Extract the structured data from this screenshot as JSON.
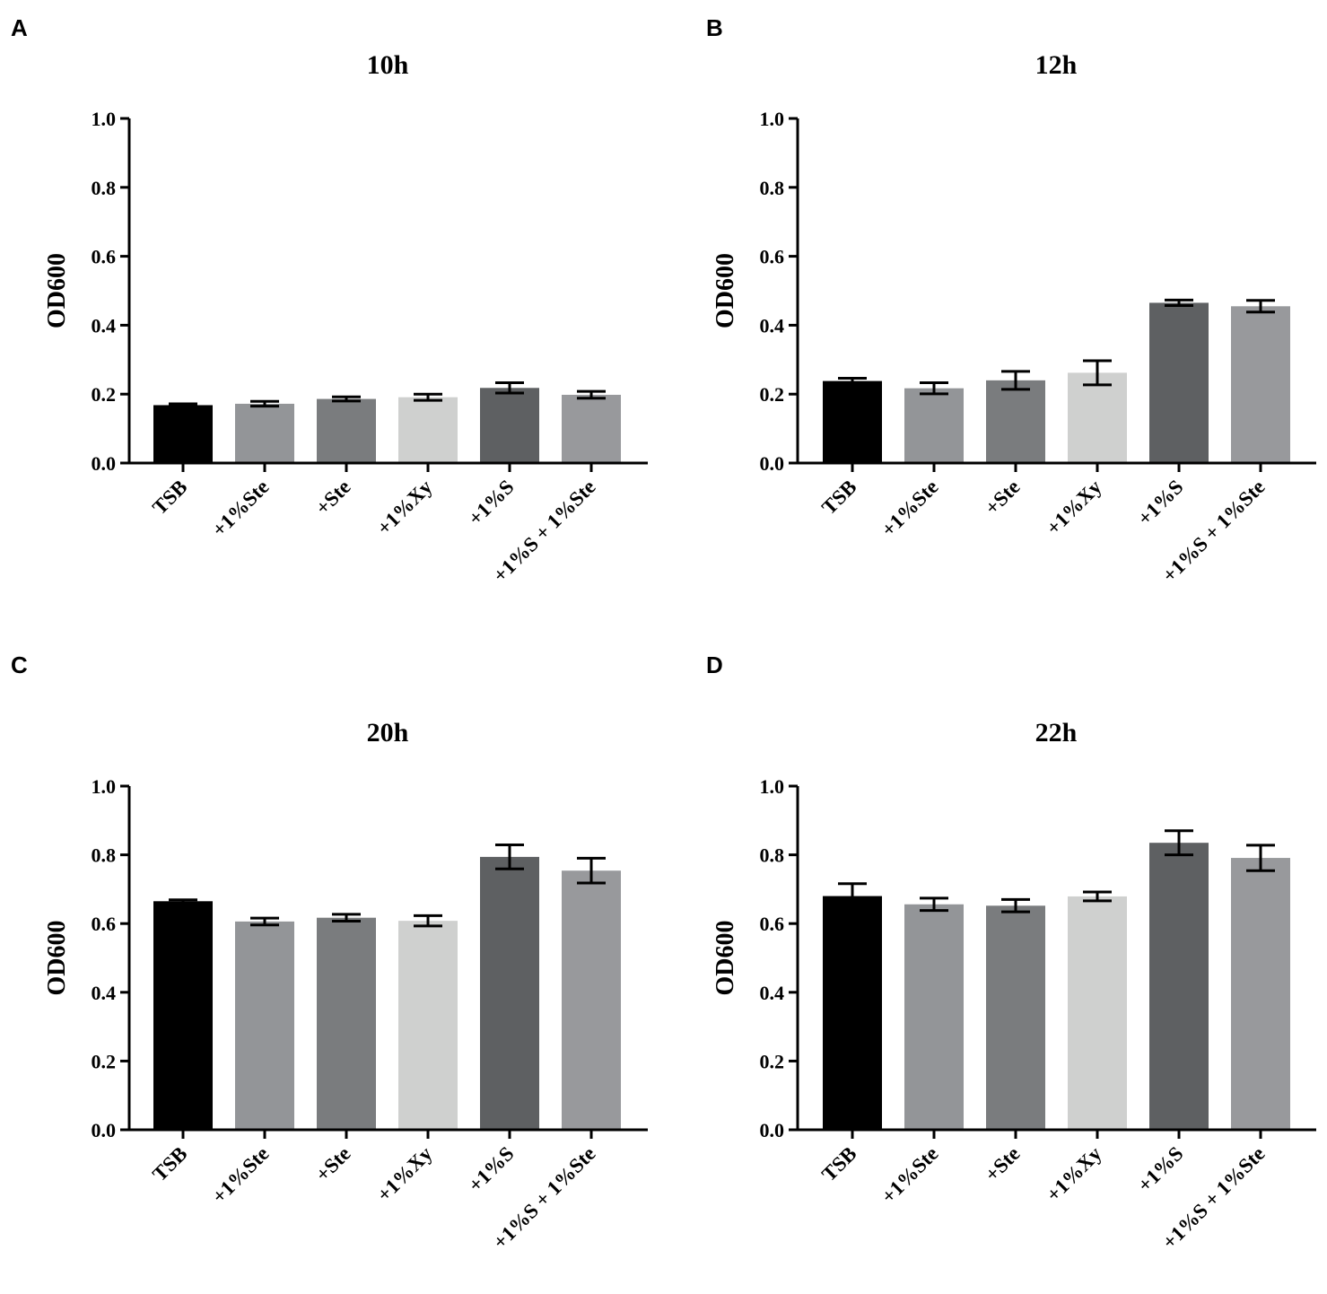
{
  "chart_data": [
    {
      "panel": "A",
      "type": "bar",
      "title": "10h",
      "xlabel": "",
      "ylabel": "OD600",
      "ylim": [
        0,
        1.0
      ],
      "yticks": [
        "0.0",
        "0.2",
        "0.4",
        "0.6",
        "0.8",
        "1.0"
      ],
      "categories": [
        "TSB",
        "+1%Ste",
        "+Ste",
        "+1%Xy",
        "+1%S",
        "+1%S + 1%Ste"
      ],
      "values": [
        0.168,
        0.172,
        0.186,
        0.191,
        0.218,
        0.198
      ],
      "errors": [
        0.004,
        0.007,
        0.006,
        0.009,
        0.015,
        0.01
      ],
      "colors": [
        "#000000",
        "#939598",
        "#7a7c7e",
        "#cfd0cf",
        "#5e6062",
        "#98999c"
      ]
    },
    {
      "panel": "B",
      "type": "bar",
      "title": "12h",
      "xlabel": "",
      "ylabel": "OD600",
      "ylim": [
        0,
        1.0
      ],
      "yticks": [
        "0.0",
        "0.2",
        "0.4",
        "0.6",
        "0.8",
        "1.0"
      ],
      "categories": [
        "TSB",
        "+1%Ste",
        "+Ste",
        "+1%Xy",
        "+1%S",
        "+1%S + 1%Ste"
      ],
      "values": [
        0.238,
        0.217,
        0.24,
        0.262,
        0.465,
        0.455
      ],
      "errors": [
        0.008,
        0.016,
        0.026,
        0.035,
        0.008,
        0.017
      ],
      "colors": [
        "#000000",
        "#939598",
        "#7a7c7e",
        "#cfd0cf",
        "#5e6062",
        "#98999c"
      ]
    },
    {
      "panel": "C",
      "type": "bar",
      "title": "20h",
      "xlabel": "",
      "ylabel": "OD600",
      "ylim": [
        0,
        1.0
      ],
      "yticks": [
        "0.0",
        "0.2",
        "0.4",
        "0.6",
        "0.8",
        "1.0"
      ],
      "categories": [
        "TSB",
        "+1%Ste",
        "+Ste",
        "+1%Xy",
        "+1%S",
        "+1%S + 1%Ste"
      ],
      "values": [
        0.665,
        0.606,
        0.617,
        0.608,
        0.794,
        0.754
      ],
      "errors": [
        0.004,
        0.01,
        0.01,
        0.015,
        0.035,
        0.036
      ],
      "colors": [
        "#000000",
        "#939598",
        "#7a7c7e",
        "#cfd0cf",
        "#5e6062",
        "#98999c"
      ]
    },
    {
      "panel": "D",
      "type": "bar",
      "title": "22h",
      "xlabel": "",
      "ylabel": "OD600",
      "ylim": [
        0,
        1.0
      ],
      "yticks": [
        "0.0",
        "0.2",
        "0.4",
        "0.6",
        "0.8",
        "1.0"
      ],
      "categories": [
        "TSB",
        "+1%Ste",
        "+Ste",
        "+1%Xy",
        "+1%S",
        "+1%S + 1%Ste"
      ],
      "values": [
        0.68,
        0.656,
        0.652,
        0.679,
        0.835,
        0.791
      ],
      "errors": [
        0.036,
        0.018,
        0.018,
        0.013,
        0.035,
        0.037
      ],
      "colors": [
        "#000000",
        "#939598",
        "#7a7c7e",
        "#cfd0cf",
        "#5e6062",
        "#98999c"
      ]
    }
  ]
}
